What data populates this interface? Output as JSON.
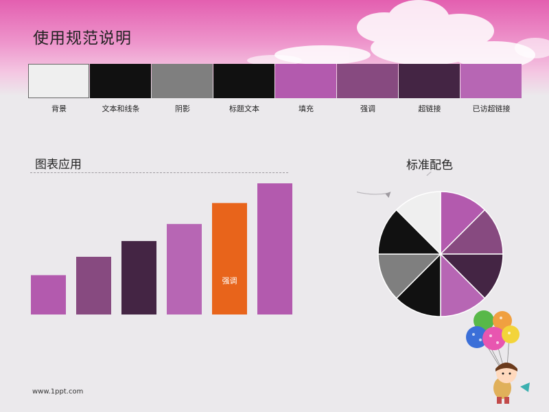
{
  "slide": {
    "title": "使用规范说明",
    "footer": "www.1ppt.com"
  },
  "palette": [
    {
      "label": "背景",
      "color": "#efefef"
    },
    {
      "label": "文本和线条",
      "color": "#111111"
    },
    {
      "label": "阴影",
      "color": "#7f7f7f"
    },
    {
      "label": "标题文本",
      "color": "#111111"
    },
    {
      "label": "填充",
      "color": "#b35aae"
    },
    {
      "label": "强调",
      "color": "#874a80"
    },
    {
      "label": "超链接",
      "color": "#442544"
    },
    {
      "label": "已访超链接",
      "color": "#b766b4"
    }
  ],
  "bar_section": {
    "title": "图表应用"
  },
  "pie_section": {
    "title": "标准配色"
  },
  "chart_data": [
    {
      "type": "bar",
      "categories": [
        "",
        "",
        "",
        "",
        "",
        ""
      ],
      "values": [
        30,
        44,
        56,
        69,
        85,
        100
      ],
      "colors": [
        "#b35aae",
        "#874a80",
        "#442544",
        "#b766b4",
        "#e8641b",
        "#b35aae"
      ],
      "data_labels": [
        "",
        "",
        "",
        "",
        "强调",
        ""
      ],
      "ylim": [
        0,
        100
      ],
      "grid": false
    },
    {
      "type": "pie",
      "values": [
        1,
        1,
        1,
        1,
        1,
        1,
        1,
        1
      ],
      "colors": [
        "#b35aae",
        "#874a80",
        "#442544",
        "#b766b4",
        "#111111",
        "#7f7f7f",
        "#111111",
        "#efefef"
      ]
    }
  ]
}
